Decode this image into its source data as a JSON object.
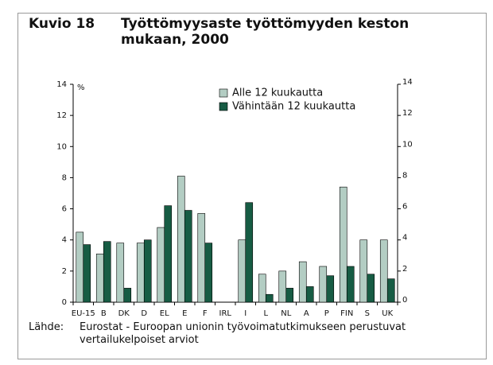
{
  "chart_data": {
    "type": "bar",
    "number": "Kuvio 18",
    "title": "Työttömyysaste työttömyyden keston mukaan, 2000",
    "y_unit": "%",
    "categories": [
      "EU-15",
      "B",
      "DK",
      "D",
      "EL",
      "E",
      "F",
      "IRL",
      "I",
      "L",
      "NL",
      "A",
      "P",
      "FIN",
      "S",
      "UK"
    ],
    "series": [
      {
        "name": "Alle 12 kuukautta",
        "color": "#b3cdc3",
        "values": [
          4.5,
          3.1,
          3.8,
          3.8,
          4.8,
          8.1,
          5.7,
          null,
          4.0,
          1.8,
          2.0,
          2.6,
          2.3,
          7.4,
          4.0,
          4.0
        ]
      },
      {
        "name": "Vähintään 12 kuukautta",
        "color": "#175c44",
        "values": [
          3.7,
          3.9,
          0.9,
          4.0,
          6.2,
          5.9,
          3.8,
          null,
          6.4,
          0.5,
          0.9,
          1.0,
          1.7,
          2.3,
          1.8,
          1.5
        ]
      }
    ],
    "ylim": [
      0,
      14
    ],
    "yticks": [
      0,
      2,
      4,
      6,
      8,
      10,
      12,
      14
    ],
    "y2lim": [
      0,
      14
    ],
    "y2ticks": [
      0,
      2,
      4,
      6,
      8,
      10,
      12,
      14
    ],
    "grid": false,
    "legend": "top",
    "source": {
      "label": "Lähde:",
      "text": "Eurostat - Euroopan unionin työvoimatutkimukseen perustuvat vertailukelpoiset arviot"
    }
  }
}
